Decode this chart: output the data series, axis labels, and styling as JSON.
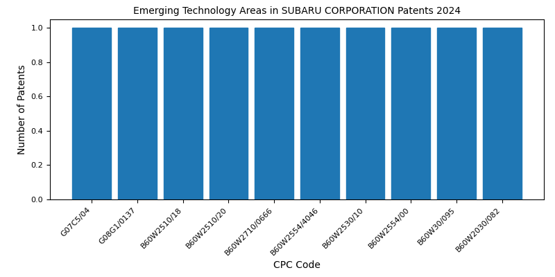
{
  "title": "Emerging Technology Areas in SUBARU CORPORATION Patents 2024",
  "xlabel": "CPC Code",
  "ylabel": "Number of Patents",
  "categories": [
    "G07C5/04",
    "G08G1/0137",
    "B60W2510/18",
    "B60W2510/20",
    "B60W2710/0666",
    "B60W2554/4046",
    "B60W2530/10",
    "B60W2554/00",
    "B60W30/095",
    "B60W2030/082"
  ],
  "values": [
    1,
    1,
    1,
    1,
    1,
    1,
    1,
    1,
    1,
    1
  ],
  "bar_color": "#1f77b4",
  "ylim": [
    0,
    1.05
  ],
  "yticks": [
    0.0,
    0.2,
    0.4,
    0.6,
    0.8,
    1.0
  ],
  "figsize": [
    8.0,
    4.0
  ],
  "dpi": 100,
  "title_fontsize": 10,
  "xlabel_fontsize": 10,
  "ylabel_fontsize": 10,
  "tick_labelsize": 8,
  "xtick_rotation": 45,
  "xtick_ha": "right",
  "bar_width": 0.85
}
